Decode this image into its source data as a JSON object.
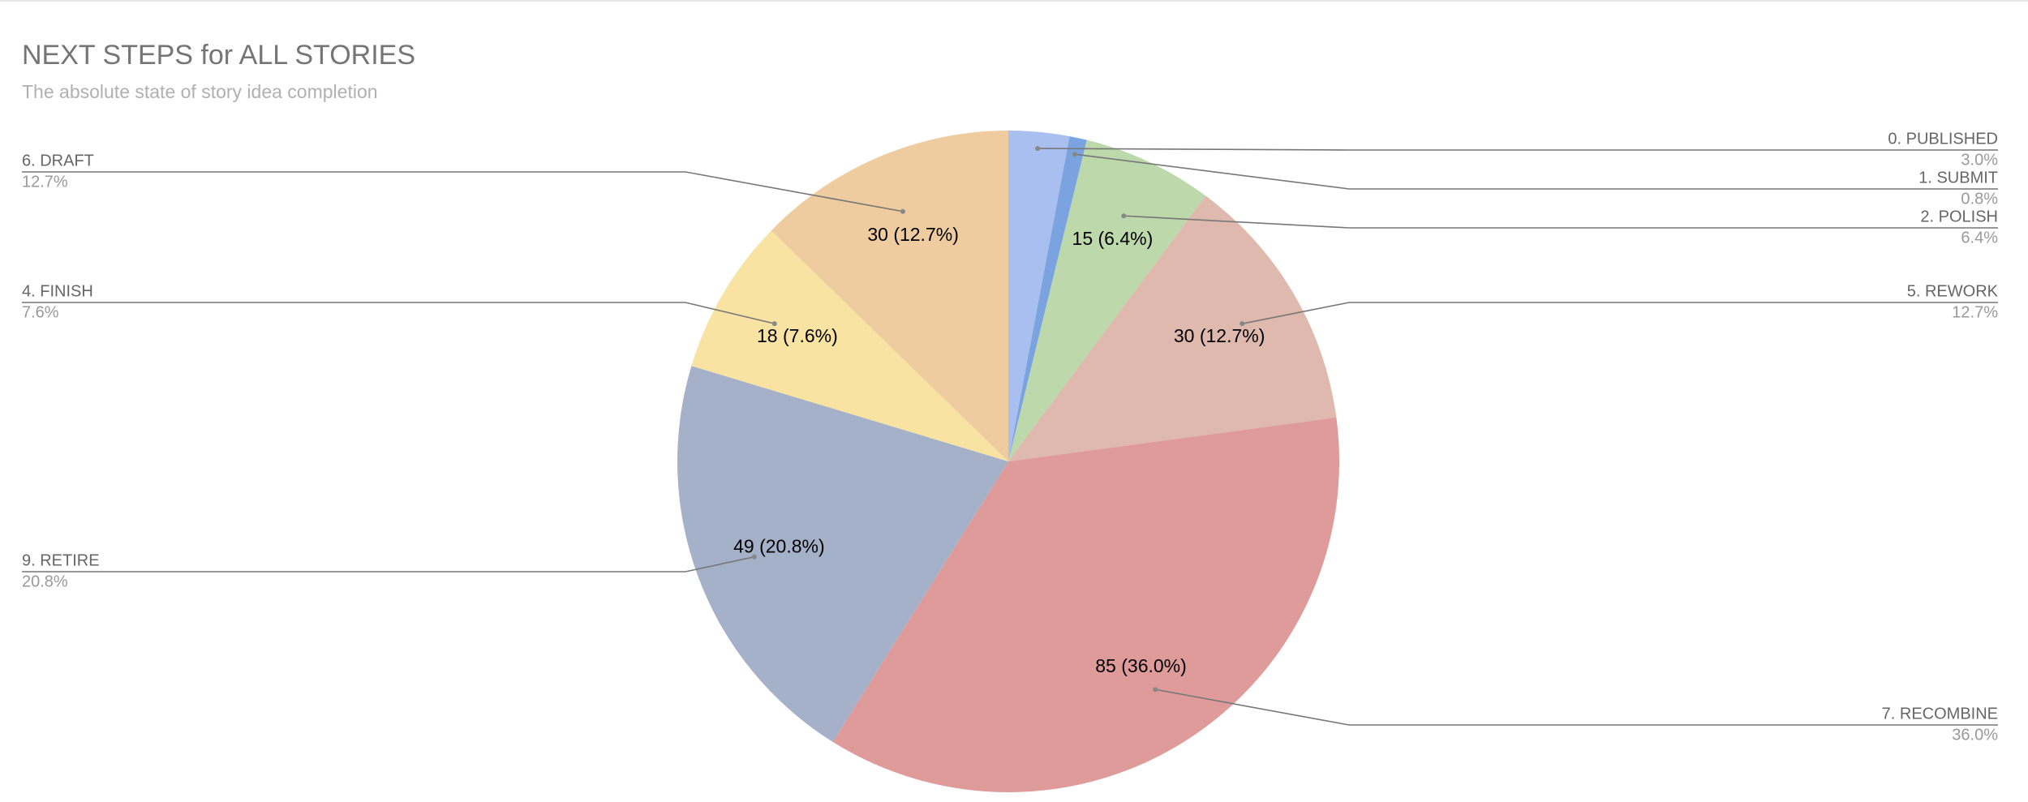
{
  "chart_data": {
    "type": "pie",
    "title": "NEXT STEPS for ALL STORIES",
    "subtitle": "The absolute state of story idea completion",
    "categories": [
      "0. PUBLISHED",
      "1. SUBMIT",
      "2. POLISH",
      "5. REWORK",
      "7. RECOMBINE",
      "9. RETIRE",
      "4. FINISH",
      "6. DRAFT"
    ],
    "values": [
      7,
      2,
      15,
      30,
      85,
      49,
      18,
      30
    ],
    "value_labels": [
      null,
      null,
      "15 (6.4%)",
      "30 (12.7%)",
      "85 (36.0%)",
      "49 (20.8%)",
      "18 (7.6%)",
      "30 (12.7%)"
    ],
    "percent_labels": [
      "3.0%",
      "0.8%",
      "6.4%",
      "12.7%",
      "36.0%",
      "20.8%",
      "7.6%",
      "12.7%"
    ],
    "colors": [
      "#a8bff0",
      "#7ba3e0",
      "#bdd8ab",
      "#dfb8ae",
      "#df9a9a",
      "#a5b1c9",
      "#f8e3a2",
      "#efcc9f"
    ]
  }
}
